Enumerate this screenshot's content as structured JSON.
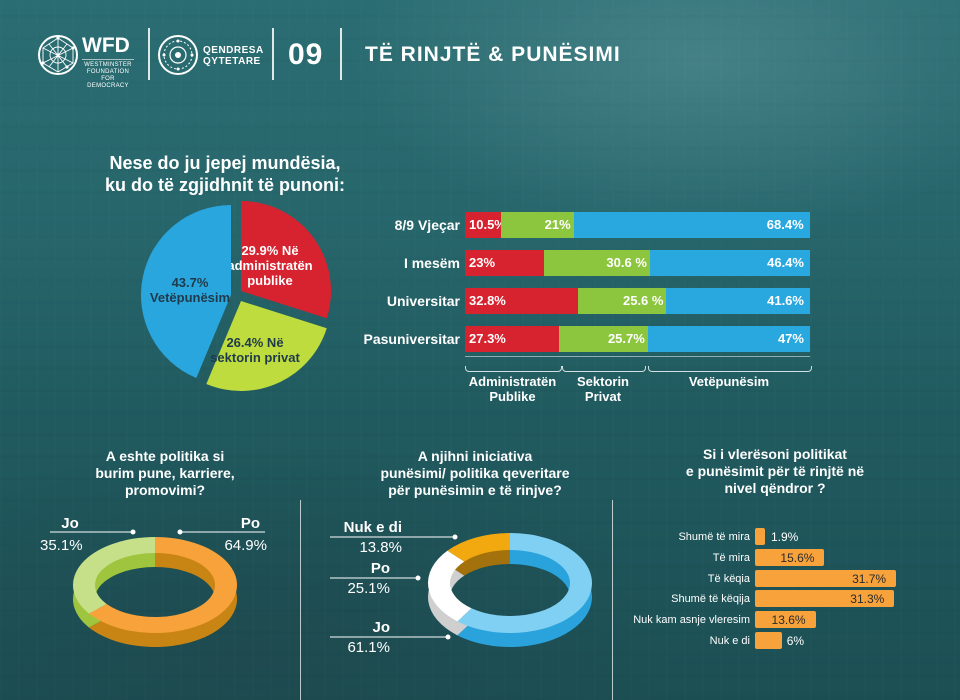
{
  "header": {
    "wfd_logo": "WFD",
    "wfd_subtitle_lines": [
      "WESTMINSTER",
      "FOUNDATION FOR",
      "DEMOCRACY"
    ],
    "qendresa_lines": [
      "QENDRESA",
      "QYTETARE"
    ],
    "section_number": "09",
    "section_title": "TË RINJTË & PUNËSIMI",
    "icons": [
      "globe-network-icon",
      "ornament-circle-icon"
    ]
  },
  "colors": {
    "red": "#d7232f",
    "green": "#9bc53d",
    "blue": "#2aa6de",
    "orange": "#f7a23b",
    "light_green": "#c6e08a",
    "gold": "#f1a90f",
    "light_blue": "#7fd0f2"
  },
  "chart_data": [
    {
      "type": "pie",
      "title": "Nese do ju jepej mundësia, ku do të zgjidhnit të punoni:",
      "title_lines": [
        "Nese do ju jepej mundësia,",
        "ku do të zgjidhnit të punoni:"
      ],
      "slices": [
        {
          "label": "Në administratën publike",
          "value": 29.9,
          "text_lines": [
            "29.9% Në",
            "administratën",
            "publike"
          ],
          "color": "#d7232f"
        },
        {
          "label": "Në sektorin privat",
          "value": 26.4,
          "text_lines": [
            "26.4% Në",
            "sektorin privat"
          ],
          "color": "#bfdc3f"
        },
        {
          "label": "Vetëpunësim",
          "value": 43.7,
          "text_lines": [
            "43.7%",
            "Vetëpunësim"
          ],
          "color": "#2aa6de"
        }
      ]
    },
    {
      "type": "bar",
      "orientation": "horizontal-stacked-100",
      "title": "",
      "categories": [
        "8/9 Vjeçar",
        "I mesëm",
        "Universitar",
        "Pasuniversitar"
      ],
      "series": [
        {
          "name": "Administratën Publike",
          "legend_lines": [
            "Administratën",
            "Publike"
          ],
          "values": [
            10.5,
            23,
            32.8,
            27.3
          ],
          "labels": [
            "10.5%",
            "23%",
            "32.8%",
            "27.3%"
          ],
          "color": "#d7232f"
        },
        {
          "name": "Sektorin Privat",
          "legend_lines": [
            "Sektorin",
            "Privat"
          ],
          "values": [
            21,
            30.6,
            25.6,
            25.7
          ],
          "labels": [
            "21%",
            "30.6 %",
            "25.6 %",
            "25.7%"
          ],
          "color": "#8cc63f"
        },
        {
          "name": "Vetëpunësim",
          "legend_lines": [
            "Vetëpunësim"
          ],
          "values": [
            68.4,
            46.4,
            41.6,
            47
          ],
          "labels": [
            "68.4%",
            "46.4%",
            "41.6%",
            "47%"
          ],
          "color": "#29a8e0"
        }
      ],
      "legend_position": "bottom"
    },
    {
      "type": "pie",
      "style": "donut-3d",
      "title": "A eshte politika si burim pune, karriere, promovimi?",
      "title_lines": [
        "A eshte politika si",
        "burim pune, karriere,",
        "promovimi?"
      ],
      "slices": [
        {
          "label": "Po",
          "value": 64.9,
          "text": "64.9%",
          "color": "#f7a23b"
        },
        {
          "label": "Jo",
          "value": 35.1,
          "text": "35.1%",
          "color": "#c6e08a"
        }
      ]
    },
    {
      "type": "pie",
      "style": "donut-3d",
      "title": "A njihni iniciativa punësimi/ politika qeveritare për punësimin e të rinjve?",
      "title_lines": [
        "A njihni iniciativa",
        "punësimi/ politika qeveritare",
        "për punësimin e të rinjve?"
      ],
      "slices": [
        {
          "label": "Jo",
          "value": 61.1,
          "text": "61.1%",
          "color": "#7fd0f2"
        },
        {
          "label": "Po",
          "value": 25.1,
          "text": "25.1%",
          "color": "#ffffff"
        },
        {
          "label": "Nuk e di",
          "value": 13.8,
          "text": "13.8%",
          "color": "#f1a90f"
        }
      ]
    },
    {
      "type": "bar",
      "orientation": "horizontal",
      "title": "Si i vlerësoni politikat e punësimit për të rinjtë në nivel qëndror ?",
      "title_lines": [
        "Si i vlerësoni politikat",
        "e punësimit për të rinjtë në",
        "nivel qëndror ?"
      ],
      "categories": [
        "Shumë të mira",
        "Të mira",
        "Të këqia",
        "Shumë të këqija",
        "Nuk kam asnje vleresim",
        "Nuk e di"
      ],
      "values": [
        1.9,
        15.6,
        31.7,
        31.3,
        13.6,
        6
      ],
      "labels": [
        "1.9%",
        "15.6%",
        "31.7%",
        "31.3%",
        "13.6%",
        "6%"
      ],
      "color": "#f7a23b"
    }
  ]
}
